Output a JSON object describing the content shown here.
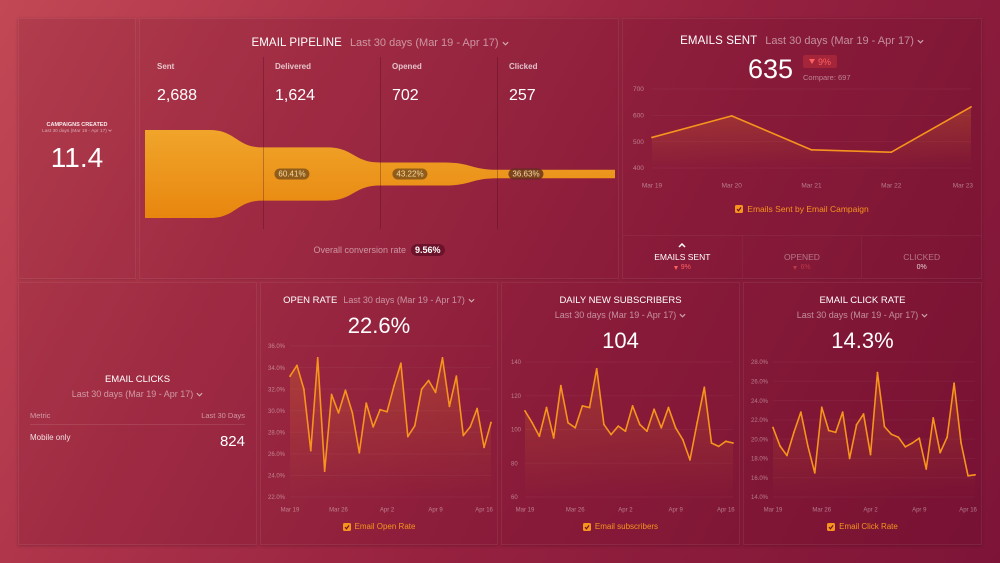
{
  "colors": {
    "accent": "#f7941d",
    "funnel_top": "#f0a52a",
    "funnel_bottom": "#e8860f",
    "negative": "#ff6060",
    "text": "#ffffff"
  },
  "campaigns_created": {
    "title": "CAMPAIGNS CREATED",
    "period": "Last 30 days (Mar 19 - Apr 17)",
    "value": "11.4"
  },
  "email_pipeline": {
    "title": "EMAIL PIPELINE",
    "period": "Last 30 days (Mar 19 - Apr 17)",
    "stages": [
      {
        "label": "Sent",
        "value": "2,688"
      },
      {
        "label": "Delivered",
        "value": "1,624",
        "rate": "60.41%"
      },
      {
        "label": "Opened",
        "value": "702",
        "rate": "43.22%"
      },
      {
        "label": "Clicked",
        "value": "257",
        "rate": "36.63%"
      }
    ],
    "overall_label": "Overall conversion rate",
    "overall_value": "9.56%"
  },
  "emails_sent": {
    "title": "EMAILS SENT",
    "period": "Last 30 days (Mar 19 - Apr 17)",
    "value": "635",
    "change": "9%",
    "change_direction": "down",
    "compare": "Compare: 697",
    "legend": "Emails Sent by Email Campaign",
    "tabs": [
      {
        "label": "EMAILS SENT",
        "change": "9%",
        "direction": "down",
        "active": true
      },
      {
        "label": "OPENED",
        "change": "6%",
        "direction": "down",
        "active": false
      },
      {
        "label": "CLICKED",
        "change": "0%",
        "direction": "none",
        "active": false
      }
    ]
  },
  "email_clicks": {
    "title": "EMAIL CLICKS",
    "period": "Last 30 days (Mar 19 - Apr 17)",
    "columns": [
      "Metric",
      "Last 30 Days"
    ],
    "rows": [
      {
        "metric": "Mobile only",
        "value": "824"
      }
    ]
  },
  "open_rate": {
    "title": "OPEN RATE",
    "period": "Last 30 days (Mar 19 - Apr 17)",
    "value": "22.6%",
    "legend": "Email Open Rate"
  },
  "daily_new_subscribers": {
    "title": "DAILY NEW SUBSCRIBERS",
    "period": "Last 30 days (Mar 19 - Apr 17)",
    "value": "104",
    "legend": "Email subscribers"
  },
  "email_click_rate": {
    "title": "EMAIL CLICK RATE",
    "period": "Last 30 days (Mar 19 - Apr 17)",
    "value": "14.3%",
    "legend": "Email Click Rate"
  },
  "chart_data": [
    {
      "id": "pipeline_funnel",
      "type": "bar",
      "style": "funnel",
      "title": "EMAIL PIPELINE",
      "categories": [
        "Sent",
        "Delivered",
        "Opened",
        "Clicked"
      ],
      "values": [
        2688,
        1624,
        702,
        257
      ],
      "step_conversion_pct": [
        60.41,
        43.22,
        36.63
      ],
      "overall_conversion_pct": 9.56
    },
    {
      "id": "emails_sent",
      "type": "line",
      "title": "EMAILS SENT",
      "x": [
        "Mar 19",
        "Mar 20",
        "Mar 21",
        "Mar 22",
        "Mar 23"
      ],
      "series": [
        {
          "name": "Emails Sent by Email Campaign",
          "values": [
            516,
            598,
            469,
            460,
            632
          ]
        }
      ],
      "ylim": [
        400,
        700
      ],
      "yticks": [
        400,
        500,
        600,
        700
      ],
      "ytick_labels": [
        "400",
        "500",
        "600",
        "700"
      ],
      "xtick_labels": [
        "Mar 19",
        "Mar 20",
        "Mar 21",
        "Mar 22",
        "Mar 23"
      ],
      "grid": true,
      "legend": "bottom"
    },
    {
      "id": "open_rate",
      "type": "line",
      "title": "OPEN RATE",
      "x": [
        "Mar 19",
        "Mar 20",
        "Mar 21",
        "Mar 22",
        "Mar 23",
        "Mar 24",
        "Mar 25",
        "Mar 26",
        "Mar 27",
        "Mar 28",
        "Mar 29",
        "Mar 30",
        "Mar 31",
        "Apr 1",
        "Apr 2",
        "Apr 3",
        "Apr 4",
        "Apr 5",
        "Apr 6",
        "Apr 7",
        "Apr 8",
        "Apr 9",
        "Apr 10",
        "Apr 11",
        "Apr 12",
        "Apr 13",
        "Apr 14",
        "Apr 15",
        "Apr 16",
        "Apr 17"
      ],
      "series": [
        {
          "name": "Email Open Rate",
          "values": [
            33.2,
            34.2,
            32.0,
            26.3,
            34.9,
            24.4,
            31.5,
            29.8,
            31.9,
            29.8,
            26.1,
            30.7,
            28.5,
            30.1,
            29.9,
            32.3,
            34.4,
            27.6,
            28.6,
            32.0,
            32.8,
            31.7,
            34.9,
            30.4,
            33.2,
            27.7,
            28.5,
            30.2,
            26.6,
            28.9
          ]
        }
      ],
      "ylim": [
        22,
        36
      ],
      "yticks": [
        22,
        24,
        26,
        28,
        30,
        32,
        34,
        36
      ],
      "ytick_labels": [
        "22.0%",
        "24.0%",
        "26.0%",
        "28.0%",
        "30.0%",
        "32.0%",
        "34.0%",
        "36.0%"
      ],
      "xtick_labels": [
        "Mar 19",
        "Mar 26",
        "Apr 2",
        "Apr 9",
        "Apr 16"
      ],
      "grid": true,
      "legend": "bottom"
    },
    {
      "id": "daily_new_subscribers",
      "type": "line",
      "title": "DAILY NEW SUBSCRIBERS",
      "x": [
        "Mar 19",
        "Mar 20",
        "Mar 21",
        "Mar 22",
        "Mar 23",
        "Mar 24",
        "Mar 25",
        "Mar 26",
        "Mar 27",
        "Mar 28",
        "Mar 29",
        "Mar 30",
        "Mar 31",
        "Apr 1",
        "Apr 2",
        "Apr 3",
        "Apr 4",
        "Apr 5",
        "Apr 6",
        "Apr 7",
        "Apr 8",
        "Apr 9",
        "Apr 10",
        "Apr 11",
        "Apr 12",
        "Apr 13",
        "Apr 14",
        "Apr 15",
        "Apr 16",
        "Apr 17"
      ],
      "series": [
        {
          "name": "Email subscribers",
          "values": [
            111,
            104,
            96,
            113,
            95,
            126,
            104,
            101,
            114,
            113,
            136,
            103,
            97,
            102,
            99,
            114,
            103,
            99,
            112,
            101,
            113,
            101,
            94,
            82,
            104,
            125,
            92,
            90,
            93,
            92
          ]
        }
      ],
      "ylim": [
        60,
        140
      ],
      "yticks": [
        60,
        80,
        100,
        120,
        140
      ],
      "ytick_labels": [
        "60",
        "80",
        "100",
        "120",
        "140"
      ],
      "xtick_labels": [
        "Mar 19",
        "Mar 26",
        "Apr 2",
        "Apr 9",
        "Apr 16"
      ],
      "grid": true,
      "legend": "bottom"
    },
    {
      "id": "email_click_rate",
      "type": "line",
      "title": "EMAIL CLICK RATE",
      "x": [
        "Mar 19",
        "Mar 20",
        "Mar 21",
        "Mar 22",
        "Mar 23",
        "Mar 24",
        "Mar 25",
        "Mar 26",
        "Mar 27",
        "Mar 28",
        "Mar 29",
        "Mar 30",
        "Mar 31",
        "Apr 1",
        "Apr 2",
        "Apr 3",
        "Apr 4",
        "Apr 5",
        "Apr 6",
        "Apr 7",
        "Apr 8",
        "Apr 9",
        "Apr 10",
        "Apr 11",
        "Apr 12",
        "Apr 13",
        "Apr 14",
        "Apr 15",
        "Apr 16",
        "Apr 17"
      ],
      "series": [
        {
          "name": "Email Click Rate",
          "values": [
            21.2,
            19.3,
            18.3,
            20.7,
            22.8,
            19.3,
            16.5,
            23.3,
            20.9,
            20.7,
            22.8,
            18.0,
            21.5,
            22.6,
            18.4,
            26.9,
            21.3,
            20.5,
            20.2,
            19.2,
            19.6,
            20.1,
            16.9,
            22.2,
            18.6,
            20.2,
            25.8,
            19.6,
            16.2,
            16.3
          ]
        }
      ],
      "ylim": [
        14,
        28
      ],
      "yticks": [
        14,
        16,
        18,
        20,
        22,
        24,
        26,
        28
      ],
      "ytick_labels": [
        "14.0%",
        "16.0%",
        "18.0%",
        "20.0%",
        "22.0%",
        "24.0%",
        "26.0%",
        "28.0%"
      ],
      "xtick_labels": [
        "Mar 19",
        "Mar 26",
        "Apr 2",
        "Apr 9",
        "Apr 16"
      ],
      "grid": true,
      "legend": "bottom"
    }
  ]
}
